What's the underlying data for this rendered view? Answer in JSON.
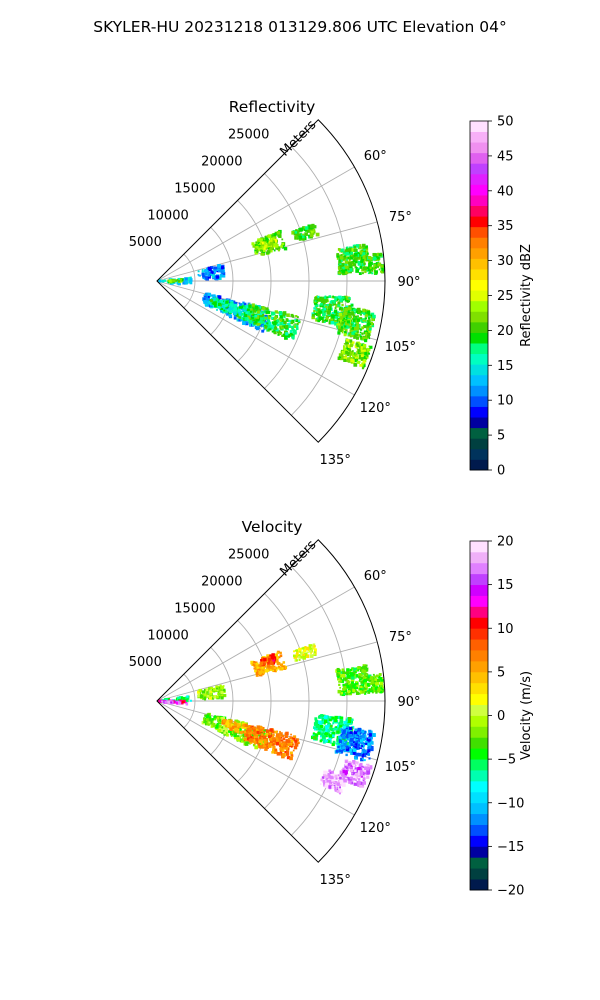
{
  "figure_title": "SKYLER-HU  20231218  013129.806 UTC Elevation 04°",
  "chart_data": [
    {
      "type": "heatmap",
      "projection": "polar-sector",
      "title": "Reflectivity",
      "radial_label": "Meters",
      "radial_ticks": [
        5000,
        10000,
        15000,
        20000,
        25000
      ],
      "radial_tick_labels": [
        "5000",
        "10000",
        "15000",
        "20000",
        "25000"
      ],
      "rmax": 30000,
      "theta_range_deg": [
        45,
        135
      ],
      "theta_ticks_deg": [
        60,
        75,
        90,
        105,
        120,
        135
      ],
      "theta_tick_labels": [
        "60°",
        "75°",
        "90°",
        "105°",
        "120°",
        "135°"
      ],
      "grid": true,
      "colorbar": {
        "label": "Reflectivity dBZ",
        "min": 0,
        "max": 50,
        "ticks": [
          0,
          5,
          10,
          15,
          20,
          25,
          30,
          35,
          40,
          45,
          50
        ],
        "tick_labels": [
          "0",
          "5",
          "10",
          "15",
          "20",
          "25",
          "30",
          "35",
          "40",
          "45",
          "50"
        ],
        "colors": [
          "#001a4d",
          "#00335c",
          "#004040",
          "#006040",
          "#0000a0",
          "#0000ff",
          "#0050ff",
          "#0090ff",
          "#00c0ff",
          "#00e0e0",
          "#00ffc0",
          "#00ff80",
          "#00e000",
          "#40d000",
          "#80e000",
          "#a0ff00",
          "#e0ff00",
          "#ffff00",
          "#ffe000",
          "#ffc000",
          "#ffa000",
          "#ff8000",
          "#ff5000",
          "#ff0000",
          "#ff0060",
          "#ff00c0",
          "#ff00ff",
          "#e020ff",
          "#c040ff",
          "#e060f0",
          "#f090f0",
          "#f8b0f8",
          "#ffe0ff"
        ]
      },
      "echoes": [
        {
          "r": [
            300,
            4500
          ],
          "theta": [
            84,
            98
          ],
          "value": 14
        },
        {
          "r": [
            1500,
            3500
          ],
          "theta": [
            86,
            94
          ],
          "value": 21
        },
        {
          "r": [
            5500,
            9000
          ],
          "theta": [
            76,
            88
          ],
          "value": 11
        },
        {
          "r": [
            13500,
            17500
          ],
          "theta": [
            68,
            76
          ],
          "value": 21
        },
        {
          "r": [
            14500,
            16500
          ],
          "theta": [
            70,
            74
          ],
          "value": 24
        },
        {
          "r": [
            19000,
            22000
          ],
          "theta": [
            70,
            74
          ],
          "value": 20
        },
        {
          "r": [
            24000,
            28000
          ],
          "theta": [
            80,
            88
          ],
          "value": 20
        },
        {
          "r": [
            28000,
            29800
          ],
          "theta": [
            83,
            88
          ],
          "value": 20
        },
        {
          "r": [
            6500,
            15500
          ],
          "theta": [
            104,
            116
          ],
          "value": 12
        },
        {
          "r": [
            7500,
            13000
          ],
          "theta": [
            106,
            114
          ],
          "value": 17
        },
        {
          "r": [
            12500,
            19500
          ],
          "theta": [
            104,
            114
          ],
          "value": 19
        },
        {
          "r": [
            21000,
            26000
          ],
          "theta": [
            95,
            104
          ],
          "value": 19
        },
        {
          "r": [
            24500,
            29000
          ],
          "theta": [
            98,
            106
          ],
          "value": 20
        },
        {
          "r": [
            26000,
            29500
          ],
          "theta": [
            107,
            113
          ],
          "value": 22
        }
      ]
    },
    {
      "type": "heatmap",
      "projection": "polar-sector",
      "title": "Velocity",
      "radial_label": "Meters",
      "radial_ticks": [
        5000,
        10000,
        15000,
        20000,
        25000
      ],
      "radial_tick_labels": [
        "5000",
        "10000",
        "15000",
        "20000",
        "25000"
      ],
      "rmax": 30000,
      "theta_range_deg": [
        45,
        135
      ],
      "theta_ticks_deg": [
        60,
        75,
        90,
        105,
        120,
        135
      ],
      "theta_tick_labels": [
        "60°",
        "75°",
        "90°",
        "105°",
        "120°",
        "135°"
      ],
      "grid": true,
      "colorbar": {
        "label": "Velocity (m/s)",
        "min": -20,
        "max": 20,
        "ticks": [
          -20,
          -15,
          -10,
          -5,
          0,
          5,
          10,
          15,
          20
        ],
        "tick_labels": [
          "−20",
          "−15",
          "−10",
          "−5",
          "0",
          "5",
          "10",
          "15",
          "20"
        ],
        "colors": [
          "#001a4d",
          "#004040",
          "#006040",
          "#0000a0",
          "#0000ff",
          "#0050ff",
          "#0090ff",
          "#00c0ff",
          "#00e0ff",
          "#00ffff",
          "#00ffb0",
          "#00ff60",
          "#00ff00",
          "#40e000",
          "#80f000",
          "#b0ff00",
          "#d0ff40",
          "#ffff00",
          "#ffe000",
          "#ffc000",
          "#ffa000",
          "#ff8000",
          "#ff6000",
          "#ff3000",
          "#ff0000",
          "#ff0080",
          "#ff00ff",
          "#d000ff",
          "#c040ff",
          "#e080ff",
          "#f0b0f8",
          "#ffe0ff"
        ]
      },
      "echoes": [
        {
          "r": [
            300,
            4500
          ],
          "theta": [
            80,
            90
          ],
          "value": -6
        },
        {
          "r": [
            300,
            4000
          ],
          "theta": [
            90,
            94
          ],
          "value": 13
        },
        {
          "r": [
            300,
            4000
          ],
          "theta": [
            94,
            98
          ],
          "value": 16
        },
        {
          "r": [
            5500,
            9000
          ],
          "theta": [
            76,
            88
          ],
          "value": -1
        },
        {
          "r": [
            13500,
            17500
          ],
          "theta": [
            68,
            76
          ],
          "value": 5
        },
        {
          "r": [
            14500,
            16500
          ],
          "theta": [
            68,
            72
          ],
          "value": 9
        },
        {
          "r": [
            19000,
            22000
          ],
          "theta": [
            70,
            74
          ],
          "value": 1
        },
        {
          "r": [
            24000,
            28000
          ],
          "theta": [
            80,
            88
          ],
          "value": -3
        },
        {
          "r": [
            28000,
            29800
          ],
          "theta": [
            83,
            88
          ],
          "value": -3
        },
        {
          "r": [
            6500,
            15500
          ],
          "theta": [
            104,
            116
          ],
          "value": -2
        },
        {
          "r": [
            9000,
            14000
          ],
          "theta": [
            105,
            111
          ],
          "value": 5
        },
        {
          "r": [
            12500,
            19500
          ],
          "theta": [
            104,
            114
          ],
          "value": 7
        },
        {
          "r": [
            21000,
            26000
          ],
          "theta": [
            95,
            104
          ],
          "value": -6
        },
        {
          "r": [
            24500,
            29000
          ],
          "theta": [
            98,
            106
          ],
          "value": -12
        },
        {
          "r": [
            26000,
            29500
          ],
          "theta": [
            107,
            113
          ],
          "value": 17
        },
        {
          "r": [
            24000,
            27000
          ],
          "theta": [
            112,
            117
          ],
          "value": 18
        }
      ]
    }
  ]
}
